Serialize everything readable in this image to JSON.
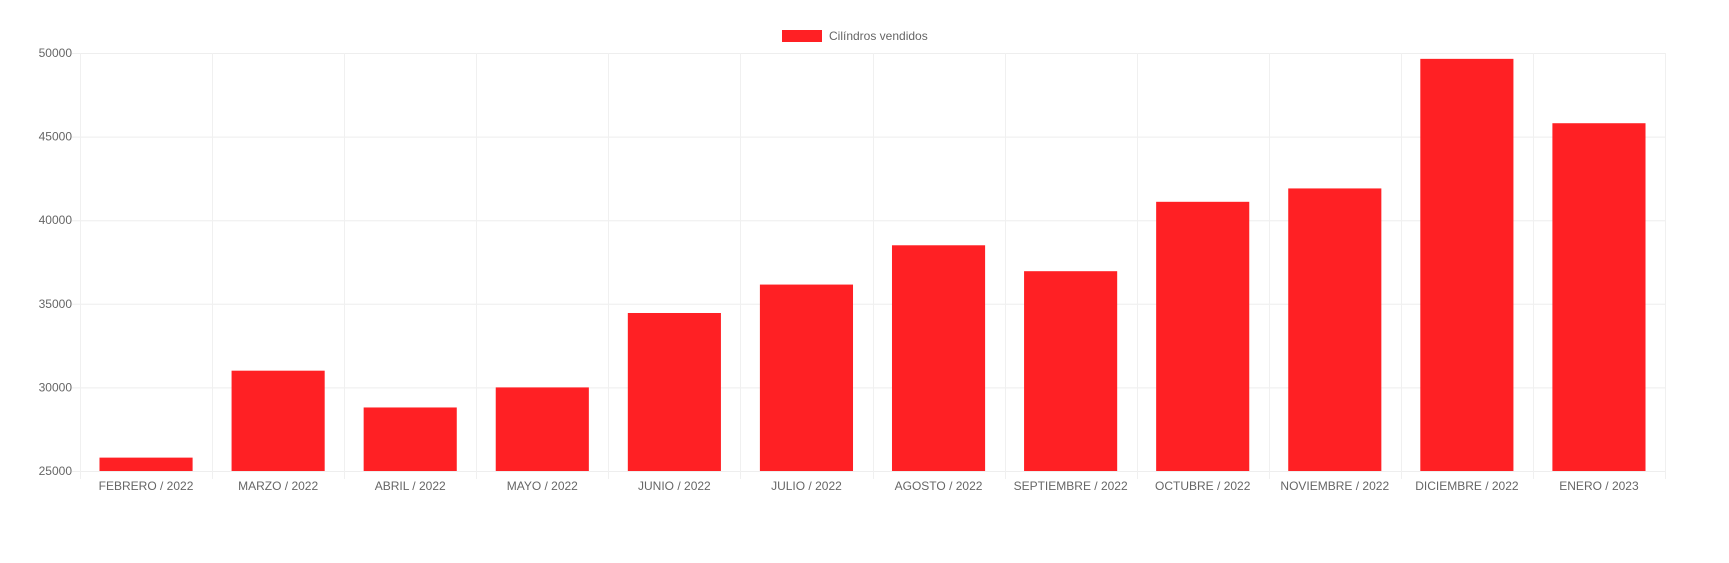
{
  "chart_data": {
    "type": "bar",
    "categories": [
      "FEBRERO / 2022",
      "MARZO / 2022",
      "ABRIL / 2022",
      "MAYO / 2022",
      "JUNIO / 2022",
      "JULIO / 2022",
      "AGOSTO / 2022",
      "SEPTIEMBRE / 2022",
      "OCTUBRE / 2022",
      "NOVIEMBRE / 2022",
      "DICIEMBRE / 2022",
      "ENERO / 2023"
    ],
    "series": [
      {
        "name": "Cilíndros vendidos",
        "color": "#ff2024",
        "values": [
          25800,
          31000,
          28800,
          30000,
          34450,
          36150,
          38500,
          36950,
          41100,
          41900,
          49650,
          45800
        ]
      }
    ],
    "title": "",
    "xlabel": "",
    "ylabel": "",
    "ylim": [
      25000,
      50000
    ],
    "yticks": [
      25000,
      30000,
      35000,
      40000,
      45000,
      50000
    ],
    "grid": true,
    "legend_position": "top-center"
  }
}
